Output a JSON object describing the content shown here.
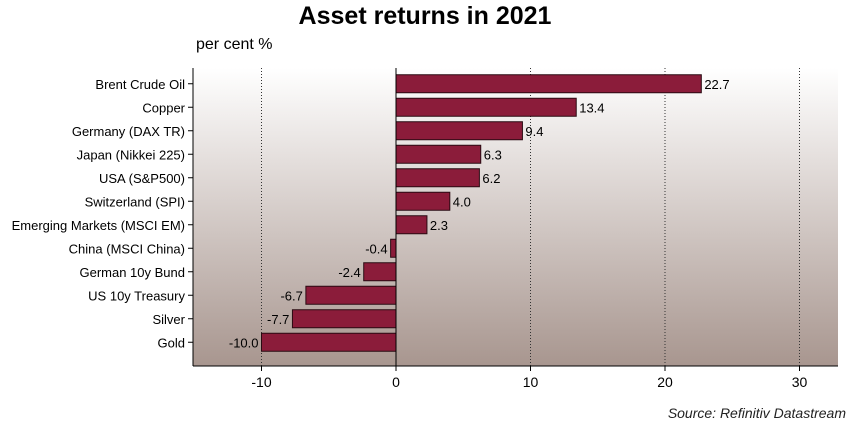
{
  "chart_data": {
    "type": "bar",
    "orientation": "horizontal",
    "title": "Asset returns in 2021",
    "ylabel": "per cent %",
    "source": "Source: Refinitiv Datastream",
    "categories": [
      "Brent Crude Oil",
      "Copper",
      "Germany (DAX TR)",
      "Japan (Nikkei 225)",
      "USA (S&P500)",
      "Switzerland (SPI)",
      "Emerging Markets (MSCI EM)",
      "China (MSCI China)",
      "German 10y Bund",
      "US 10y Treasury",
      "Silver",
      "Gold"
    ],
    "values": [
      22.7,
      13.4,
      9.4,
      6.3,
      6.2,
      4.0,
      2.3,
      -0.4,
      -2.4,
      -6.7,
      -7.7,
      -10.0
    ],
    "value_labels": [
      "22.7",
      "13.4",
      "9.4",
      "6.3",
      "6.2",
      "4.0",
      "2.3",
      "-0.4",
      "-2.4",
      "-6.7",
      "-7.7",
      "-10.0"
    ],
    "xlim": [
      -15,
      33
    ],
    "xticks": [
      -10,
      0,
      10,
      20,
      30
    ],
    "grid": "vertical dotted",
    "colors": {
      "bar": "#8b1c3a",
      "bar_edge": "#2a0a12",
      "bg_top": "#ffffff",
      "bg_bottom": "#a8968f"
    }
  }
}
